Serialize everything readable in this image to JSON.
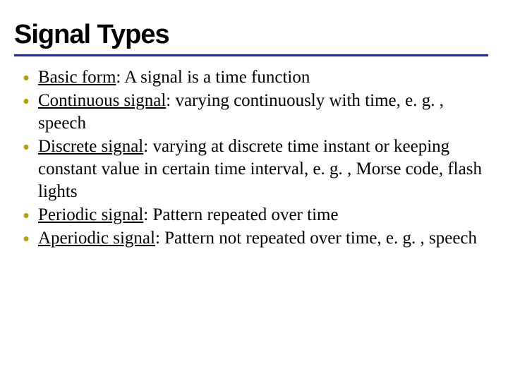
{
  "slide": {
    "title": "Signal Types",
    "title_color": "#000000",
    "title_fontsize": 38,
    "underline_color": "#2020c0",
    "bullet_color": "#b8a000",
    "text_color": "#000000",
    "body_fontsize": 25,
    "bullets": [
      {
        "term": "Basic form",
        "rest": ": A signal is a time function"
      },
      {
        "term": "Continuous signal",
        "rest": ": varying continuously with time, e. g. , speech"
      },
      {
        "term": "Discrete signal",
        "rest": ": varying at discrete time instant or keeping constant value in certain time interval, e. g. , Morse code, flash lights"
      },
      {
        "term": "Periodic signal",
        "rest": ": Pattern repeated over time"
      },
      {
        "term": "Aperiodic signal",
        "rest": ": Pattern not repeated over time, e. g. , speech"
      }
    ]
  }
}
